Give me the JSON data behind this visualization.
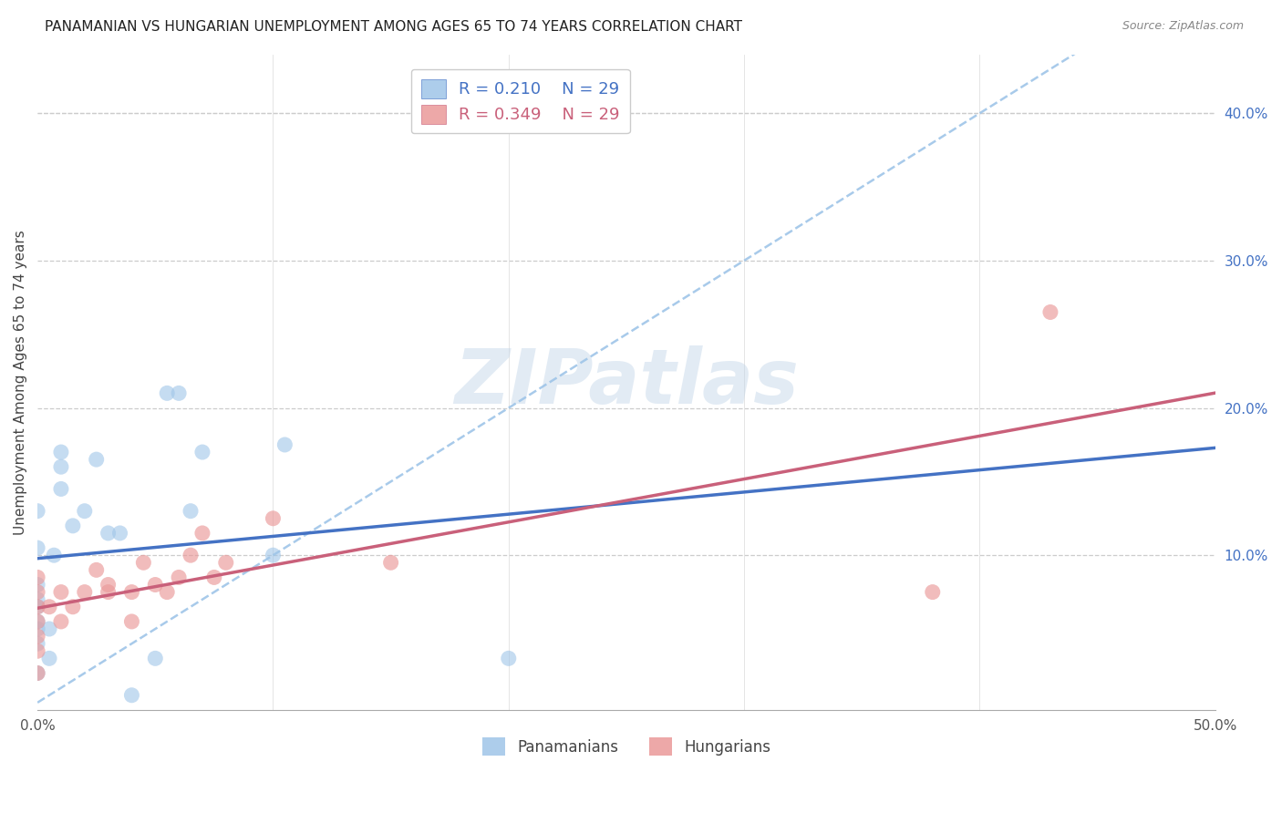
{
  "title": "PANAMANIAN VS HUNGARIAN UNEMPLOYMENT AMONG AGES 65 TO 74 YEARS CORRELATION CHART",
  "source": "Source: ZipAtlas.com",
  "ylabel": "Unemployment Among Ages 65 to 74 years",
  "xlim": [
    0.0,
    0.5
  ],
  "ylim": [
    -0.005,
    0.44
  ],
  "xticks": [
    0.0,
    0.1,
    0.2,
    0.3,
    0.4,
    0.5
  ],
  "xtick_labels": [
    "0.0%",
    "",
    "",
    "",
    "",
    "50.0%"
  ],
  "yticks_right": [
    0.1,
    0.2,
    0.3,
    0.4
  ],
  "ytick_labels_right": [
    "10.0%",
    "20.0%",
    "30.0%",
    "40.0%"
  ],
  "blue_scatter_color": "#9fc5e8",
  "pink_scatter_color": "#ea9999",
  "blue_line_color": "#4472c4",
  "pink_line_color": "#c9607a",
  "dashed_line_color": "#9fc5e8",
  "background_color": "#ffffff",
  "grid_color": "#cccccc",
  "panama_x": [
    0.0,
    0.0,
    0.0,
    0.0,
    0.0,
    0.0,
    0.0,
    0.0,
    0.0,
    0.005,
    0.005,
    0.007,
    0.01,
    0.01,
    0.01,
    0.015,
    0.02,
    0.025,
    0.03,
    0.035,
    0.04,
    0.05,
    0.055,
    0.06,
    0.065,
    0.07,
    0.1,
    0.105,
    0.2
  ],
  "panama_y": [
    0.02,
    0.04,
    0.05,
    0.055,
    0.065,
    0.07,
    0.08,
    0.105,
    0.13,
    0.03,
    0.05,
    0.1,
    0.145,
    0.16,
    0.17,
    0.12,
    0.13,
    0.165,
    0.115,
    0.115,
    0.005,
    0.03,
    0.21,
    0.21,
    0.13,
    0.17,
    0.1,
    0.175,
    0.03
  ],
  "hungary_x": [
    0.0,
    0.0,
    0.0,
    0.0,
    0.0,
    0.0,
    0.0,
    0.005,
    0.01,
    0.01,
    0.015,
    0.02,
    0.025,
    0.03,
    0.03,
    0.04,
    0.04,
    0.045,
    0.05,
    0.055,
    0.06,
    0.065,
    0.07,
    0.075,
    0.08,
    0.1,
    0.15,
    0.38,
    0.43
  ],
  "hungary_y": [
    0.02,
    0.035,
    0.045,
    0.055,
    0.065,
    0.075,
    0.085,
    0.065,
    0.055,
    0.075,
    0.065,
    0.075,
    0.09,
    0.075,
    0.08,
    0.055,
    0.075,
    0.095,
    0.08,
    0.075,
    0.085,
    0.1,
    0.115,
    0.085,
    0.095,
    0.125,
    0.095,
    0.075,
    0.265
  ],
  "watermark": "ZIPatlas",
  "watermark_color": "#c0d4e8",
  "watermark_fontsize": 60,
  "title_fontsize": 11,
  "axis_label_fontsize": 11,
  "tick_fontsize": 11,
  "legend_fontsize": 13
}
